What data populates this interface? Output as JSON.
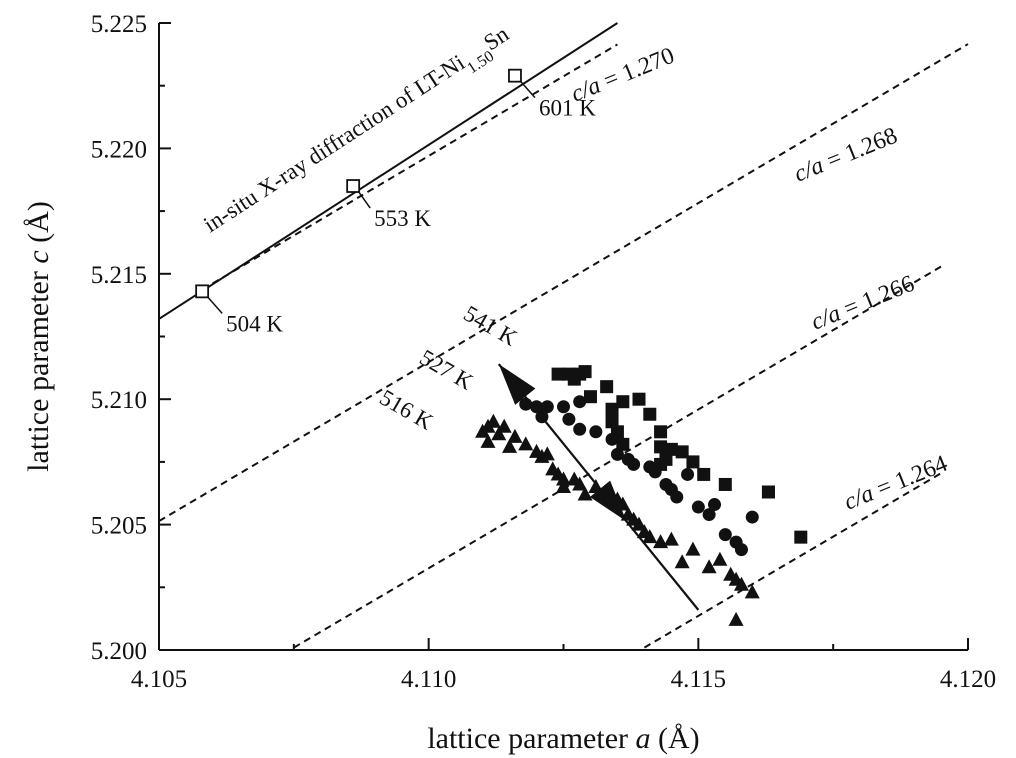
{
  "chart_data": {
    "type": "scatter",
    "title": "",
    "xlabel": "lattice parameter",
    "xlabel_symbol": "a",
    "xlabel_unit": "(Å)",
    "ylabel": "lattice parameter",
    "ylabel_symbol": "c",
    "ylabel_unit": "(Å)",
    "xlim": [
      4.105,
      4.12
    ],
    "ylim": [
      5.2,
      5.225
    ],
    "x_ticks": [
      "4.105",
      "4.110",
      "4.115",
      "4.120"
    ],
    "y_ticks": [
      "5.200",
      "5.205",
      "5.210",
      "5.215",
      "5.220",
      "5.225"
    ],
    "grid": false,
    "in_situ_series": {
      "label_prefix": "in-situ X-ray diffraction of LT-Ni",
      "label_subscript": "1.50",
      "label_suffix": "Sn",
      "marker": "open-square",
      "fit_line": [
        [
          4.105,
          5.2132
        ],
        [
          4.1135,
          5.225
        ]
      ],
      "points": [
        {
          "a": 4.1058,
          "c": 5.2143,
          "label": "504 K"
        },
        {
          "a": 4.1086,
          "c": 5.2185,
          "label": "553 K"
        },
        {
          "a": 4.1116,
          "c": 5.2229,
          "label": "601 K"
        }
      ]
    },
    "ratio_lines": [
      {
        "prefix": "c/a",
        "value": "= 1.270",
        "ratio": 1.27,
        "a_range": [
          4.1058,
          4.1135
        ]
      },
      {
        "prefix": "c/a",
        "value": "= 1.268",
        "ratio": 1.268,
        "a_range": [
          4.105,
          4.12
        ]
      },
      {
        "prefix": "c/a",
        "value": "= 1.266",
        "ratio": 1.266,
        "a_range": [
          4.1075,
          4.1195
        ]
      },
      {
        "prefix": "c/a",
        "value": "= 1.264",
        "ratio": 1.264,
        "a_range": [
          4.114,
          4.1195
        ]
      }
    ],
    "series": [
      {
        "name": "541 K",
        "marker": "square",
        "points": [
          [
            4.1124,
            5.211
          ],
          [
            4.1126,
            5.211
          ],
          [
            4.1127,
            5.2108
          ],
          [
            4.1128,
            5.211
          ],
          [
            4.1129,
            5.2111
          ],
          [
            4.1133,
            5.2105
          ],
          [
            4.113,
            5.2101
          ],
          [
            4.1136,
            5.2099
          ],
          [
            4.1134,
            5.2096
          ],
          [
            4.1139,
            5.21
          ],
          [
            4.1141,
            5.2094
          ],
          [
            4.1134,
            5.2091
          ],
          [
            4.1135,
            5.2087
          ],
          [
            4.1136,
            5.2082
          ],
          [
            4.1143,
            5.2087
          ],
          [
            4.1143,
            5.2081
          ],
          [
            4.1145,
            5.208
          ],
          [
            4.1144,
            5.2076
          ],
          [
            4.1143,
            5.2074
          ],
          [
            4.1147,
            5.2079
          ],
          [
            4.1149,
            5.2075
          ],
          [
            4.1151,
            5.207
          ],
          [
            4.1155,
            5.2066
          ],
          [
            4.1163,
            5.2063
          ],
          [
            4.1163,
            5.2063
          ],
          [
            4.1169,
            5.2045
          ]
        ]
      },
      {
        "name": "527 K",
        "marker": "circle",
        "points": [
          [
            4.1118,
            5.2098
          ],
          [
            4.112,
            5.2097
          ],
          [
            4.1121,
            5.2093
          ],
          [
            4.1122,
            5.2097
          ],
          [
            4.1125,
            5.2097
          ],
          [
            4.1128,
            5.2099
          ],
          [
            4.1126,
            5.2092
          ],
          [
            4.1128,
            5.2088
          ],
          [
            4.1131,
            5.2087
          ],
          [
            4.1134,
            5.2084
          ],
          [
            4.1135,
            5.2078
          ],
          [
            4.1137,
            5.2076
          ],
          [
            4.1138,
            5.2074
          ],
          [
            4.1141,
            5.2073
          ],
          [
            4.1142,
            5.2071
          ],
          [
            4.1144,
            5.2066
          ],
          [
            4.1145,
            5.2064
          ],
          [
            4.1146,
            5.2061
          ],
          [
            4.1148,
            5.207
          ],
          [
            4.115,
            5.2057
          ],
          [
            4.1152,
            5.2054
          ],
          [
            4.1153,
            5.2058
          ],
          [
            4.1155,
            5.2046
          ],
          [
            4.1157,
            5.2043
          ],
          [
            4.116,
            5.2053
          ],
          [
            4.1158,
            5.204
          ]
        ]
      },
      {
        "name": "516 K",
        "marker": "triangle",
        "points": [
          [
            4.111,
            5.2087
          ],
          [
            4.1111,
            5.2089
          ],
          [
            4.1112,
            5.2091
          ],
          [
            4.1113,
            5.2086
          ],
          [
            4.1114,
            5.2089
          ],
          [
            4.1111,
            5.2083
          ],
          [
            4.1115,
            5.2081
          ],
          [
            4.1116,
            5.2085
          ],
          [
            4.1118,
            5.2082
          ],
          [
            4.112,
            5.2079
          ],
          [
            4.1121,
            5.2077
          ],
          [
            4.1122,
            5.2078
          ],
          [
            4.1123,
            5.2072
          ],
          [
            4.1124,
            5.207
          ],
          [
            4.1125,
            5.2068
          ],
          [
            4.1125,
            5.2065
          ],
          [
            4.1127,
            5.2068
          ],
          [
            4.1128,
            5.2066
          ],
          [
            4.1129,
            5.2062
          ],
          [
            4.1131,
            5.2065
          ],
          [
            4.1133,
            5.2063
          ],
          [
            4.1135,
            5.206
          ],
          [
            4.1136,
            5.2058
          ],
          [
            4.1137,
            5.2054
          ],
          [
            4.1138,
            5.2052
          ],
          [
            4.1139,
            5.205
          ],
          [
            4.114,
            5.2047
          ],
          [
            4.1141,
            5.2045
          ],
          [
            4.1143,
            5.2043
          ],
          [
            4.1145,
            5.2044
          ],
          [
            4.1147,
            5.2035
          ],
          [
            4.1149,
            5.204
          ],
          [
            4.1152,
            5.2033
          ],
          [
            4.1154,
            5.2036
          ],
          [
            4.1156,
            5.203
          ],
          [
            4.1157,
            5.2028
          ],
          [
            4.1158,
            5.2026
          ],
          [
            4.116,
            5.2023
          ],
          [
            4.1157,
            5.2012
          ]
        ]
      }
    ],
    "arrow": {
      "from": [
        4.115,
        5.2016
      ],
      "to": [
        4.1113,
        5.2114
      ]
    }
  }
}
